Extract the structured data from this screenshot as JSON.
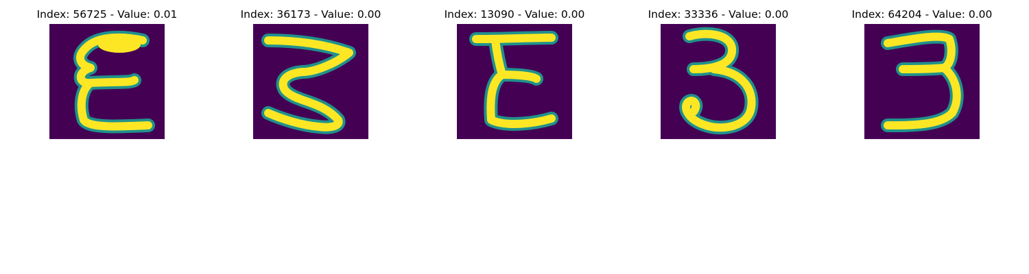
{
  "panels": [
    {
      "title": "Index: 56725 - Value: 0.01",
      "glyph": "E-like handwritten character"
    },
    {
      "title": "Index: 36173 - Value: 0.00",
      "glyph": "Z/3-like handwritten character"
    },
    {
      "title": "Index: 13090 - Value: 0.00",
      "glyph": "E-like handwritten character"
    },
    {
      "title": "Index: 33336 - Value: 0.00",
      "glyph": "3-like handwritten character"
    },
    {
      "title": "Index: 64204 - Value: 0.00",
      "glyph": "3-like handwritten character"
    }
  ],
  "colors": {
    "background": "#440154",
    "halo": "#21918c",
    "stroke": "#fde725"
  }
}
